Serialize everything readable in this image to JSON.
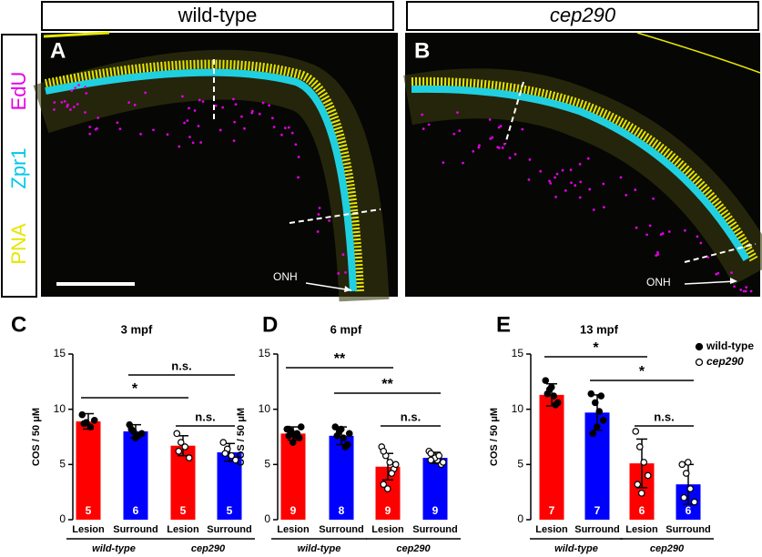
{
  "figure": {
    "panels": [
      {
        "letter": "A",
        "header": "wild-type",
        "onh": "ONH"
      },
      {
        "letter": "B",
        "header": "cep290",
        "onh": "ONH"
      }
    ],
    "stain_labels": [
      "PNA",
      "Zpr1",
      "EdU"
    ]
  },
  "chart_data": [
    {
      "type": "bar",
      "panel": "C",
      "title": "3 mpf",
      "ylabel": "COS / 50 μM",
      "categories": [
        "Lesion",
        "Surround",
        "Lesion",
        "Surround"
      ],
      "values": [
        8.9,
        8.0,
        6.7,
        6.1
      ],
      "errors": [
        0.7,
        0.6,
        0.9,
        0.8
      ],
      "colors": [
        "#ff0000",
        "#0000ff",
        "#ff0000",
        "#0000ff"
      ],
      "n": [
        5,
        6,
        5,
        5
      ],
      "points": [
        [
          9.5,
          8.8,
          8.4,
          9.0,
          8.7
        ],
        [
          8.6,
          8.0,
          7.6,
          7.8,
          8.2,
          7.4
        ],
        [
          7.8,
          7.0,
          6.6,
          5.6,
          6.2
        ],
        [
          7.0,
          6.4,
          5.8,
          5.4,
          6.0
        ]
      ],
      "groups": [
        "wild-type",
        "cep290"
      ],
      "annotations": [
        {
          "label": "n.s.",
          "between": [
            1,
            3
          ]
        },
        {
          "label": "*",
          "between": [
            0,
            2
          ]
        },
        {
          "label": "n.s.",
          "between": [
            2,
            3
          ]
        }
      ],
      "ylim": [
        0,
        15
      ],
      "yticks": [
        0,
        5,
        10,
        15
      ]
    },
    {
      "type": "bar",
      "panel": "D",
      "title": "6 mpf",
      "ylabel": "COS / 50 μM",
      "categories": [
        "Lesion",
        "Surround",
        "Lesion",
        "Surround"
      ],
      "values": [
        7.8,
        7.6,
        4.8,
        5.6
      ],
      "errors": [
        0.6,
        0.8,
        1.2,
        0.5
      ],
      "colors": [
        "#ff0000",
        "#0000ff",
        "#ff0000",
        "#0000ff"
      ],
      "n": [
        9,
        8,
        9,
        9
      ],
      "points": [
        [
          8.2,
          8.0,
          7.6,
          7.4,
          8.2,
          7.0,
          7.8,
          8.4,
          7.6
        ],
        [
          8.4,
          8.0,
          7.4,
          6.8,
          7.6,
          8.2,
          6.6,
          7.8
        ],
        [
          6.6,
          5.8,
          5.2,
          4.6,
          3.2,
          2.8,
          4.2,
          5.0,
          6.2
        ],
        [
          6.2,
          5.8,
          5.4,
          5.0,
          6.0,
          5.6,
          5.8,
          5.2,
          5.4
        ]
      ],
      "groups": [
        "wild-type",
        "cep290"
      ],
      "annotations": [
        {
          "label": "**",
          "between": [
            0,
            2
          ]
        },
        {
          "label": "**",
          "between": [
            1,
            3
          ]
        },
        {
          "label": "n.s.",
          "between": [
            2,
            3
          ]
        }
      ],
      "ylim": [
        0,
        15
      ],
      "yticks": [
        0,
        5,
        10,
        15
      ]
    },
    {
      "type": "bar",
      "panel": "E",
      "title": "13 mpf",
      "ylabel": "COS / 50 μM",
      "categories": [
        "Lesion",
        "Surround",
        "Lesion",
        "Surround"
      ],
      "values": [
        11.3,
        9.7,
        5.1,
        3.2
      ],
      "errors": [
        1.0,
        1.6,
        2.2,
        1.8
      ],
      "colors": [
        "#ff0000",
        "#0000ff",
        "#ff0000",
        "#0000ff"
      ],
      "n": [
        7,
        7,
        6,
        6
      ],
      "points": [
        [
          12.6,
          11.8,
          11.2,
          10.6,
          11.4,
          12.0,
          10.4
        ],
        [
          11.4,
          10.6,
          9.8,
          9.0,
          7.8,
          8.4,
          11.2
        ],
        [
          8.0,
          6.6,
          5.2,
          4.0,
          3.2,
          2.4
        ],
        [
          5.0,
          4.2,
          2.8,
          1.6,
          2.0,
          5.2
        ]
      ],
      "groups": [
        "wild-type",
        "cep290"
      ],
      "annotations": [
        {
          "label": "*",
          "between": [
            0,
            2
          ]
        },
        {
          "label": "*",
          "between": [
            1,
            3
          ]
        },
        {
          "label": "n.s.",
          "between": [
            2,
            3
          ]
        }
      ],
      "legend": [
        {
          "label": "wild-type",
          "marker": "filled"
        },
        {
          "label": "cep290",
          "marker": "open"
        }
      ],
      "ylim": [
        0,
        15
      ],
      "yticks": [
        0,
        5,
        10,
        15
      ]
    }
  ]
}
